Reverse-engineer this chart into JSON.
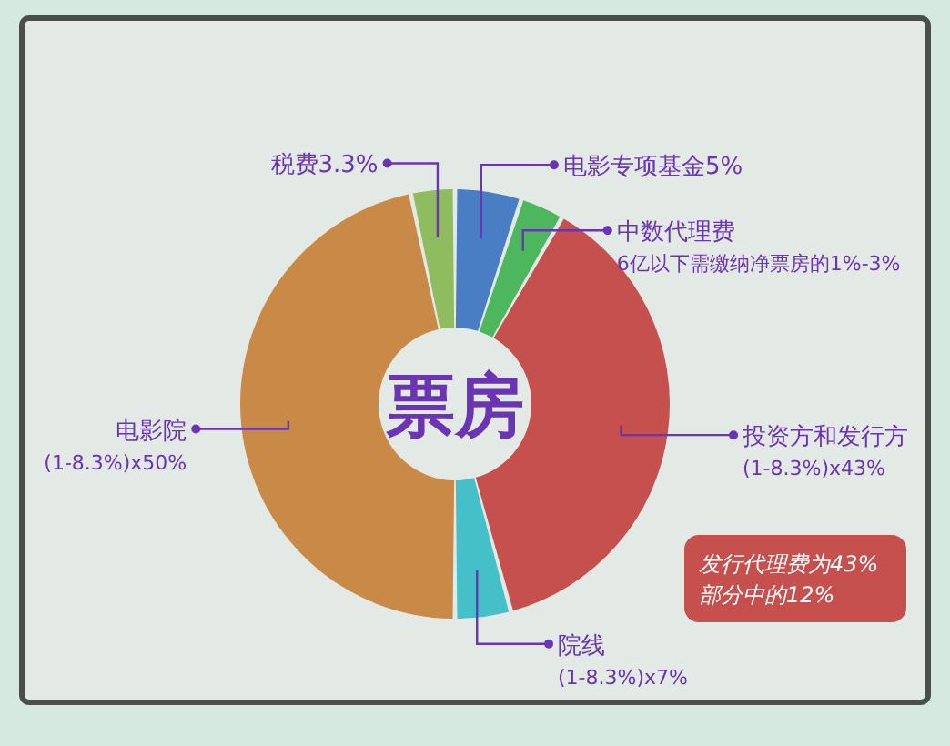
{
  "chart_data": {
    "type": "donut",
    "title": "票房",
    "categories": [
      "电影专项基金5%",
      "中数代理费\n6亿以下需缴纳净票房的1%-3%",
      "投资方和发行方\n(1-8.3%)x43%",
      "院线\n(1-8.3%)x7%",
      "电影院\n(1-8.3%)x50%",
      "税费3.3%"
    ],
    "values": [
      5,
      3.3,
      37.5,
      4.2,
      46.7,
      3.3
    ],
    "colors": [
      "#4a7ec4",
      "#4cb75c",
      "#c5504d",
      "#45c0c8",
      "#c98a48",
      "#8fbc5f"
    ],
    "annotations": [
      "发行代理费为43%\n部分中的12%"
    ]
  }
}
